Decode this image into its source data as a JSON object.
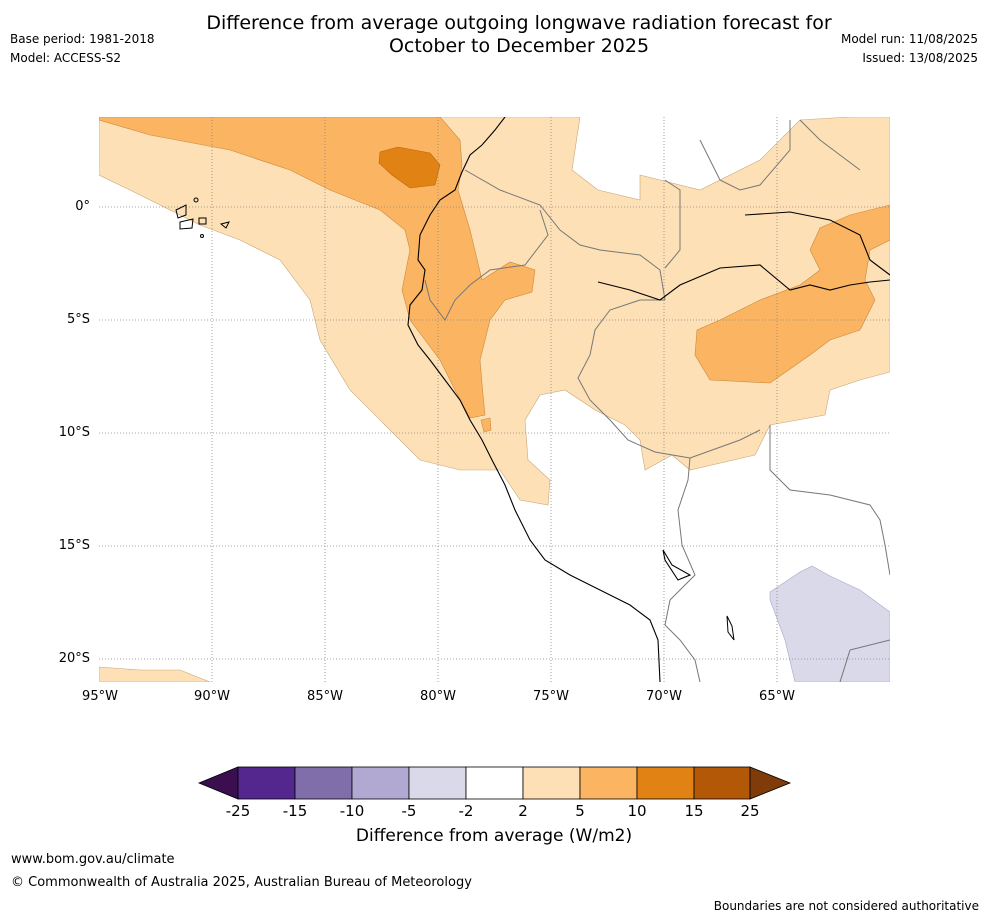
{
  "header": {
    "title_line1": "Difference from average outgoing longwave radiation forecast for",
    "title_line2": "October to December 2025",
    "base_period": "Base period: 1981-2018",
    "model": "Model: ACCESS-S2",
    "model_run": "Model run: 11/08/2025",
    "issued": "Issued: 13/08/2025"
  },
  "map": {
    "lat_labels": [
      "0°",
      "5°S",
      "10°S",
      "15°S",
      "20°S"
    ],
    "lon_labels": [
      "95°W",
      "90°W",
      "85°W",
      "80°W",
      "75°W",
      "70°W",
      "65°W"
    ]
  },
  "colorbar": {
    "ticks": [
      "-25",
      "-15",
      "-10",
      "-5",
      "-2",
      "2",
      "5",
      "10",
      "15",
      "25"
    ],
    "colors": [
      "#3b0f4f",
      "#54278f",
      "#7f6ea9",
      "#b1a9d2",
      "#d9d9ea",
      "#ffffff",
      "#fde0b5",
      "#fbb462",
      "#e08214",
      "#b35806",
      "#7f3b08"
    ],
    "label": "Difference from average (W/m2)"
  },
  "footer": {
    "url": "www.bom.gov.au/climate",
    "copyright": "© Commonwealth of Australia 2025, Australian Bureau of Meteorology",
    "disclaimer": "Boundaries are not considered authoritative"
  }
}
